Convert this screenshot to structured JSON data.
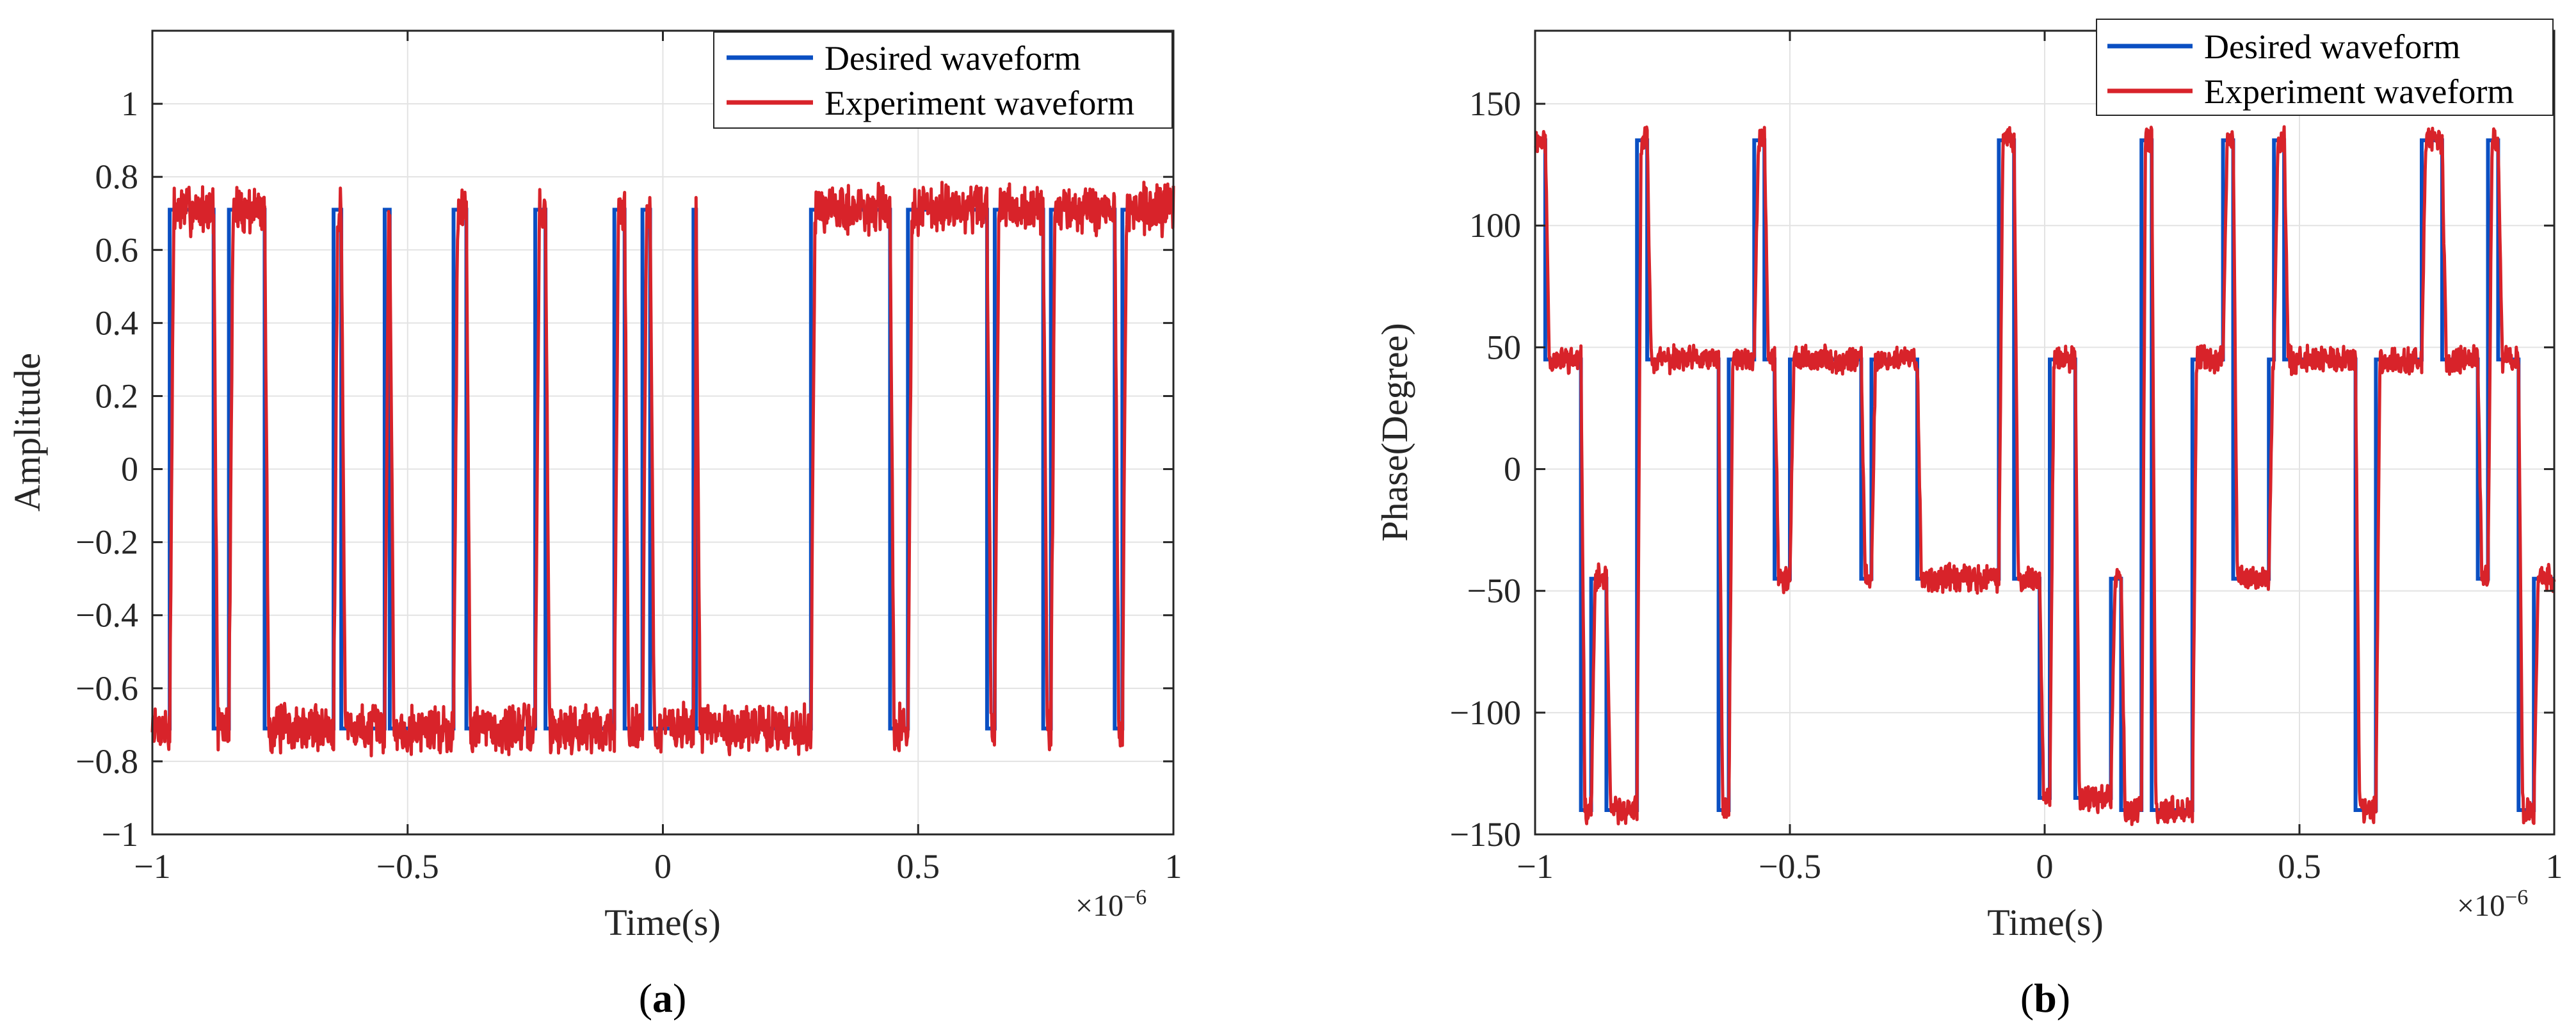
{
  "colors": {
    "desired": "#0a4fc2",
    "experiment": "#d8232a",
    "grid": "#e3e3e3",
    "axis": "#262626"
  },
  "chart_data": [
    {
      "type": "line",
      "panel_label": "a",
      "xlabel": "Time(s)",
      "ylabel": "Amplitude",
      "x_exponent_label": "×10",
      "x_exponent_power": "−6",
      "xlim": [
        -1,
        1
      ],
      "ylim": [
        -1,
        1.2
      ],
      "x_ticks": [
        -1,
        -0.5,
        0,
        0.5,
        1
      ],
      "x_tick_labels": [
        "−1",
        "−0.5",
        "0",
        "0.5",
        "1"
      ],
      "y_ticks": [
        -1,
        -0.8,
        -0.6,
        -0.4,
        -0.2,
        0,
        0.2,
        0.4,
        0.6,
        0.8,
        1
      ],
      "y_tick_labels": [
        "−1",
        "−0.8",
        "−0.6",
        "−0.4",
        "−0.2",
        "0",
        "0.2",
        "0.4",
        "0.6",
        "0.8",
        "1"
      ],
      "grid": true,
      "legend_position": "top-right",
      "x_units_scale": "1e-6",
      "series": [
        {
          "name": "Desired waveform",
          "color": "desired",
          "kind": "step",
          "transitions_x": [
            -1,
            -0.966,
            -0.88,
            -0.85,
            -0.78,
            -0.645,
            -0.63,
            -0.545,
            -0.535,
            -0.41,
            -0.385,
            -0.25,
            -0.23,
            -0.095,
            -0.075,
            -0.04,
            -0.025,
            0.06,
            0.065,
            0.155,
            0.29,
            0.445,
            0.48,
            0.635,
            0.65,
            0.745,
            0.76,
            0.885,
            0.9,
            1
          ],
          "levels": [
            -0.71,
            0.71,
            -0.71,
            0.71,
            -0.71,
            0.71,
            -0.71,
            0.71,
            -0.71,
            0.71,
            -0.71,
            0.71,
            -0.71,
            0.71,
            -0.71,
            0.71,
            -0.71,
            0.71,
            -0.71,
            -0.71,
            0.71,
            -0.71,
            0.71,
            -0.71,
            0.71,
            -0.71,
            0.71,
            -0.71,
            0.71
          ]
        },
        {
          "name": "Experiment waveform",
          "color": "experiment",
          "kind": "noisy-step",
          "noise_amplitude": 0.055,
          "noise_seed": 7
        }
      ]
    },
    {
      "type": "line",
      "panel_label": "b",
      "xlabel": "Time(s)",
      "ylabel": "Phase(Degree)",
      "x_exponent_label": "×10",
      "x_exponent_power": "−6",
      "xlim": [
        -1,
        1
      ],
      "ylim": [
        -150,
        180
      ],
      "x_ticks": [
        -1,
        -0.5,
        0,
        0.5,
        1
      ],
      "x_tick_labels": [
        "−1",
        "−0.5",
        "0",
        "0.5",
        "1"
      ],
      "y_ticks": [
        -150,
        -100,
        -50,
        0,
        50,
        100,
        150
      ],
      "y_tick_labels": [
        "−150",
        "−100",
        "−50",
        "0",
        "50",
        "100",
        "150"
      ],
      "grid": true,
      "legend_position": "top-right",
      "x_units_scale": "1e-6",
      "series": [
        {
          "name": "Desired waveform",
          "color": "desired",
          "kind": "step",
          "transitions_x": [
            -1,
            -0.98,
            -0.91,
            -0.89,
            -0.86,
            -0.8,
            -0.78,
            -0.64,
            -0.62,
            -0.57,
            -0.55,
            -0.53,
            -0.5,
            -0.48,
            -0.36,
            -0.34,
            -0.3,
            -0.25,
            -0.09,
            -0.06,
            -0.04,
            -0.01,
            0.01,
            0.06,
            0.13,
            0.15,
            0.19,
            0.21,
            0.29,
            0.35,
            0.37,
            0.44,
            0.45,
            0.47,
            0.52,
            0.56,
            0.61,
            0.65,
            0.72,
            0.74,
            0.78,
            0.85,
            0.87,
            0.89,
            0.93,
            0.96,
            1
          ],
          "levels": [
            135,
            45,
            -140,
            -45,
            -140,
            135,
            45,
            -140,
            45,
            135,
            45,
            -45,
            45,
            45,
            -45,
            45,
            45,
            -45,
            135,
            -45,
            -45,
            -135,
            45,
            -135,
            -45,
            -140,
            135,
            -140,
            45,
            135,
            -45,
            45,
            135,
            45,
            45,
            45,
            -140,
            45,
            45,
            135,
            45,
            -45,
            135,
            45,
            -140,
            -45
          ]
        },
        {
          "name": "Experiment waveform",
          "color": "experiment",
          "kind": "noisy-step",
          "noise_amplitude": 4.5,
          "noise_seed": 11
        }
      ]
    }
  ]
}
